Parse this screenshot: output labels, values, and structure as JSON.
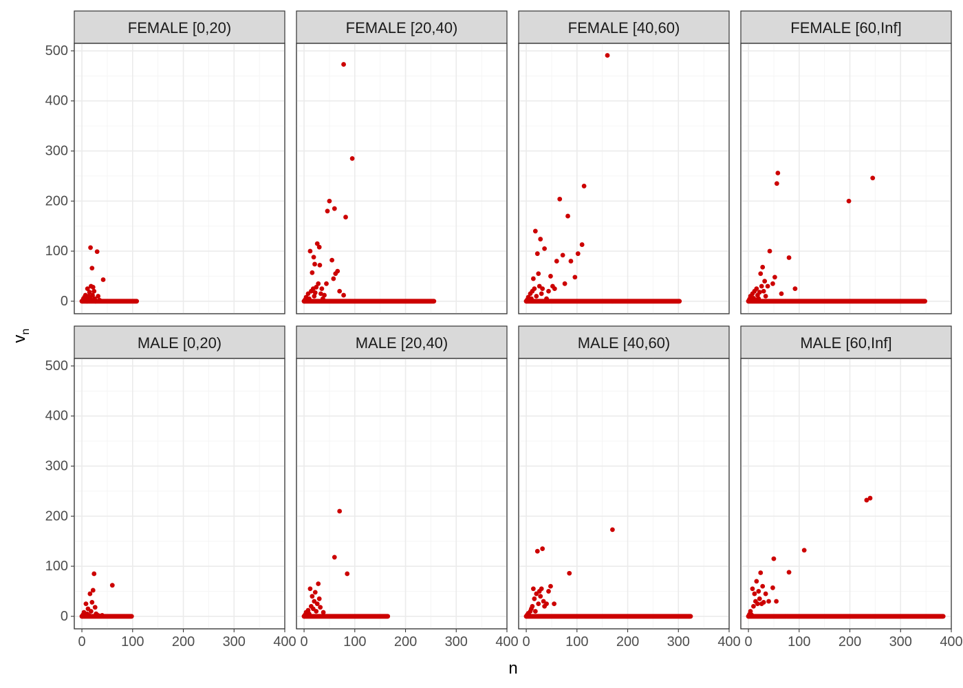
{
  "chart_data": {
    "type": "scatter",
    "facet_grid": {
      "rows": [
        "FEMALE",
        "MALE"
      ],
      "cols": [
        "[0,20)",
        "[20,40)",
        "[40,60)",
        "[60,Inf]"
      ]
    },
    "xlabel": "n",
    "ylabel": {
      "base": "v",
      "sub": "n"
    },
    "xlim": [
      -15,
      400
    ],
    "ylim": [
      -25,
      515
    ],
    "xticks": [
      0,
      100,
      200,
      300,
      400
    ],
    "xtick_labels": [
      "0",
      "100",
      "200",
      "300",
      "400"
    ],
    "yticks": [
      0,
      100,
      200,
      300,
      400,
      500
    ],
    "ytick_labels": [
      "0",
      "100",
      "200",
      "300",
      "400",
      "500"
    ],
    "grid": true,
    "point_color": "#cc0000",
    "panels": [
      {
        "strip": "FEMALE [0,20)",
        "zero_run_max": 108,
        "points": [
          [
            0,
            0
          ],
          [
            2,
            2
          ],
          [
            3,
            5
          ],
          [
            4,
            1
          ],
          [
            5,
            8
          ],
          [
            6,
            3
          ],
          [
            7,
            12
          ],
          [
            8,
            2
          ],
          [
            9,
            6
          ],
          [
            10,
            0
          ],
          [
            11,
            25
          ],
          [
            12,
            4
          ],
          [
            13,
            10
          ],
          [
            14,
            1
          ],
          [
            15,
            18
          ],
          [
            16,
            7
          ],
          [
            17,
            107
          ],
          [
            18,
            30
          ],
          [
            19,
            2
          ],
          [
            20,
            66
          ],
          [
            21,
            12
          ],
          [
            22,
            28
          ],
          [
            23,
            1
          ],
          [
            24,
            20
          ],
          [
            25,
            5
          ],
          [
            27,
            0
          ],
          [
            30,
            99
          ],
          [
            32,
            10
          ],
          [
            35,
            2
          ],
          [
            42,
            43
          ]
        ]
      },
      {
        "strip": "FEMALE [20,40)",
        "zero_run_max": 256,
        "points": [
          [
            0,
            0
          ],
          [
            2,
            3
          ],
          [
            4,
            8
          ],
          [
            6,
            2
          ],
          [
            8,
            15
          ],
          [
            10,
            5
          ],
          [
            12,
            100
          ],
          [
            14,
            20
          ],
          [
            16,
            57
          ],
          [
            18,
            25
          ],
          [
            19,
            88
          ],
          [
            20,
            10
          ],
          [
            21,
            74
          ],
          [
            22,
            17
          ],
          [
            24,
            28
          ],
          [
            26,
            115
          ],
          [
            28,
            35
          ],
          [
            30,
            108
          ],
          [
            31,
            72
          ],
          [
            33,
            15
          ],
          [
            35,
            25
          ],
          [
            37,
            5
          ],
          [
            40,
            12
          ],
          [
            44,
            35
          ],
          [
            46,
            180
          ],
          [
            50,
            200
          ],
          [
            55,
            82
          ],
          [
            58,
            45
          ],
          [
            60,
            185
          ],
          [
            62,
            55
          ],
          [
            66,
            60
          ],
          [
            70,
            20
          ],
          [
            78,
            12
          ],
          [
            82,
            168
          ],
          [
            78,
            473
          ],
          [
            95,
            285
          ]
        ]
      },
      {
        "strip": "FEMALE [40,60)",
        "zero_run_max": 302,
        "points": [
          [
            0,
            0
          ],
          [
            2,
            3
          ],
          [
            4,
            8
          ],
          [
            6,
            2
          ],
          [
            8,
            15
          ],
          [
            10,
            5
          ],
          [
            12,
            20
          ],
          [
            14,
            45
          ],
          [
            16,
            25
          ],
          [
            18,
            140
          ],
          [
            20,
            10
          ],
          [
            22,
            95
          ],
          [
            24,
            55
          ],
          [
            26,
            30
          ],
          [
            28,
            124
          ],
          [
            30,
            15
          ],
          [
            32,
            25
          ],
          [
            36,
            105
          ],
          [
            40,
            5
          ],
          [
            44,
            20
          ],
          [
            48,
            50
          ],
          [
            52,
            30
          ],
          [
            56,
            25
          ],
          [
            60,
            80
          ],
          [
            66,
            204
          ],
          [
            72,
            92
          ],
          [
            76,
            35
          ],
          [
            82,
            170
          ],
          [
            88,
            80
          ],
          [
            96,
            48
          ],
          [
            102,
            95
          ],
          [
            110,
            113
          ],
          [
            114,
            230
          ],
          [
            160,
            491
          ]
        ]
      },
      {
        "strip": "FEMALE [60,Inf]",
        "zero_run_max": 348,
        "points": [
          [
            0,
            0
          ],
          [
            2,
            4
          ],
          [
            4,
            10
          ],
          [
            6,
            2
          ],
          [
            8,
            15
          ],
          [
            10,
            6
          ],
          [
            12,
            20
          ],
          [
            14,
            3
          ],
          [
            16,
            25
          ],
          [
            18,
            12
          ],
          [
            20,
            5
          ],
          [
            22,
            18
          ],
          [
            24,
            55
          ],
          [
            26,
            30
          ],
          [
            28,
            68
          ],
          [
            30,
            20
          ],
          [
            32,
            40
          ],
          [
            34,
            10
          ],
          [
            38,
            30
          ],
          [
            42,
            100
          ],
          [
            48,
            35
          ],
          [
            52,
            48
          ],
          [
            56,
            235
          ],
          [
            58,
            256
          ],
          [
            65,
            15
          ],
          [
            80,
            87
          ],
          [
            92,
            25
          ],
          [
            198,
            200
          ],
          [
            245,
            246
          ]
        ]
      },
      {
        "strip": "MALE [0,20)",
        "zero_run_max": 98,
        "points": [
          [
            0,
            0
          ],
          [
            2,
            3
          ],
          [
            4,
            8
          ],
          [
            6,
            1
          ],
          [
            8,
            25
          ],
          [
            10,
            5
          ],
          [
            12,
            15
          ],
          [
            14,
            2
          ],
          [
            16,
            45
          ],
          [
            18,
            10
          ],
          [
            20,
            28
          ],
          [
            22,
            52
          ],
          [
            24,
            85
          ],
          [
            26,
            18
          ],
          [
            28,
            5
          ],
          [
            30,
            3
          ],
          [
            34,
            1
          ],
          [
            40,
            2
          ],
          [
            60,
            62
          ]
        ]
      },
      {
        "strip": "MALE [20,40)",
        "zero_run_max": 165,
        "points": [
          [
            0,
            0
          ],
          [
            2,
            3
          ],
          [
            4,
            8
          ],
          [
            6,
            2
          ],
          [
            8,
            12
          ],
          [
            10,
            5
          ],
          [
            12,
            55
          ],
          [
            14,
            20
          ],
          [
            16,
            40
          ],
          [
            18,
            15
          ],
          [
            20,
            30
          ],
          [
            22,
            48
          ],
          [
            24,
            10
          ],
          [
            26,
            25
          ],
          [
            28,
            65
          ],
          [
            30,
            35
          ],
          [
            32,
            18
          ],
          [
            38,
            8
          ],
          [
            60,
            118
          ],
          [
            70,
            210
          ],
          [
            85,
            85
          ]
        ]
      },
      {
        "strip": "MALE [40,60)",
        "zero_run_max": 324,
        "points": [
          [
            0,
            0
          ],
          [
            2,
            3
          ],
          [
            4,
            6
          ],
          [
            6,
            2
          ],
          [
            8,
            10
          ],
          [
            10,
            15
          ],
          [
            12,
            20
          ],
          [
            14,
            55
          ],
          [
            16,
            35
          ],
          [
            18,
            10
          ],
          [
            20,
            45
          ],
          [
            22,
            130
          ],
          [
            24,
            25
          ],
          [
            26,
            50
          ],
          [
            28,
            40
          ],
          [
            30,
            55
          ],
          [
            32,
            135
          ],
          [
            34,
            30
          ],
          [
            36,
            20
          ],
          [
            40,
            25
          ],
          [
            44,
            50
          ],
          [
            48,
            60
          ],
          [
            55,
            25
          ],
          [
            85,
            86
          ],
          [
            170,
            173
          ]
        ]
      },
      {
        "strip": "MALE [60,Inf]",
        "zero_run_max": 384,
        "points": [
          [
            0,
            0
          ],
          [
            2,
            4
          ],
          [
            4,
            10
          ],
          [
            6,
            3
          ],
          [
            8,
            55
          ],
          [
            10,
            20
          ],
          [
            12,
            45
          ],
          [
            14,
            30
          ],
          [
            16,
            70
          ],
          [
            18,
            25
          ],
          [
            20,
            50
          ],
          [
            22,
            35
          ],
          [
            24,
            87
          ],
          [
            26,
            25
          ],
          [
            28,
            60
          ],
          [
            30,
            28
          ],
          [
            34,
            45
          ],
          [
            40,
            30
          ],
          [
            48,
            57
          ],
          [
            50,
            115
          ],
          [
            55,
            30
          ],
          [
            80,
            88
          ],
          [
            110,
            132
          ],
          [
            233,
            232
          ],
          [
            240,
            236
          ]
        ]
      }
    ]
  }
}
